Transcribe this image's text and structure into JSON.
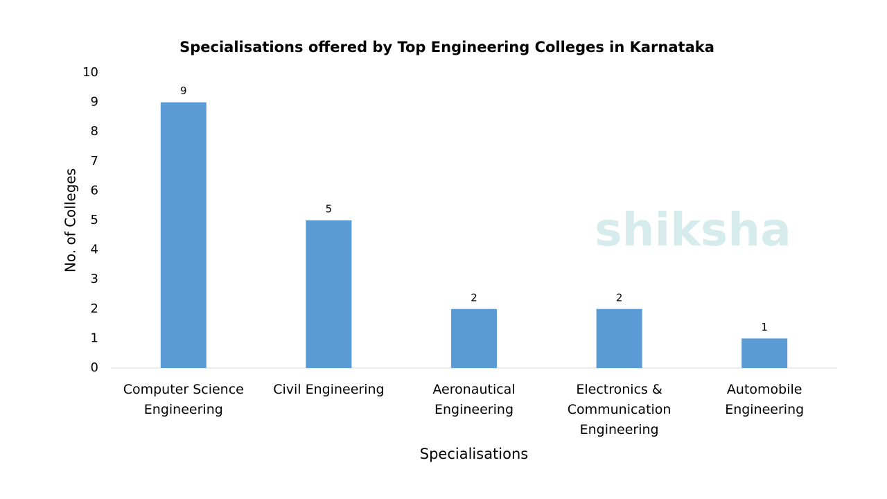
{
  "chart_data": {
    "type": "bar",
    "title": "Specialisations offered by Top Engineering Colleges in Karnataka",
    "x_label": "Specialisations",
    "y_label": "No. of Colleges",
    "categories": [
      "Computer Science Engineering",
      "Civil Engineering",
      "Aeronautical Engineering",
      "Electronics & Communication Engineering",
      "Automobile Engineering"
    ],
    "values": [
      9,
      5,
      2,
      2,
      1
    ],
    "color": "#5b9bd5",
    "ylim": [
      0,
      10
    ],
    "yticks": [
      0,
      1,
      2,
      3,
      4,
      5,
      6,
      7,
      8,
      9,
      10
    ],
    "grid": false,
    "watermark": "shiksha"
  }
}
